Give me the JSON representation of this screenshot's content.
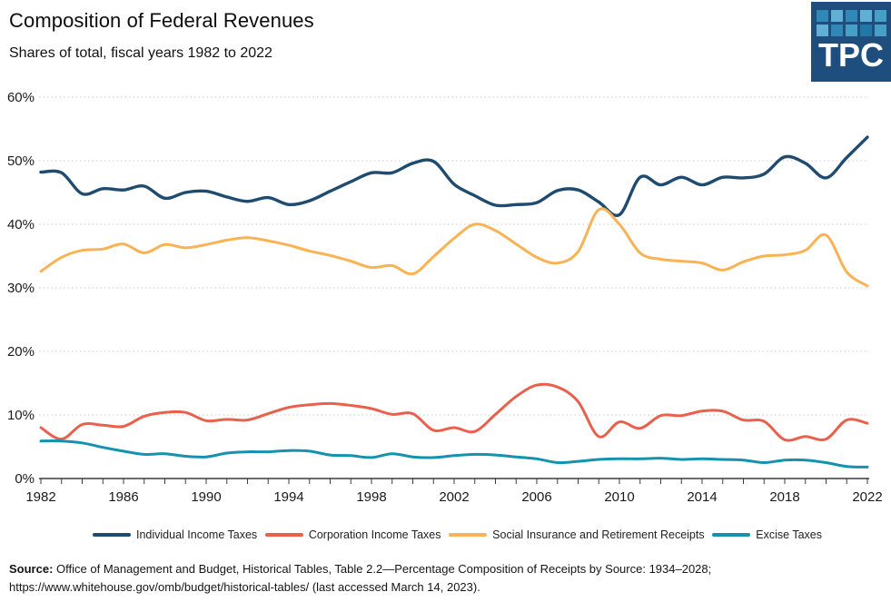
{
  "header": {
    "title": "Composition of Federal Revenues",
    "subtitle": "Shares of total, fiscal years 1982 to 2022"
  },
  "logo": {
    "text": "TPC",
    "background": "#1d4e7e",
    "tiles": [
      "#2e89b8",
      "#5fb0d4",
      "#2e89b8",
      "#5fb0d4",
      "#45a0c8",
      "#5fb0d4",
      "#2e89b8",
      "#45a0c8",
      "#1f78a8",
      "#45a0c8"
    ]
  },
  "chart_data": {
    "type": "line",
    "title": "Composition of Federal Revenues",
    "subtitle": "Shares of total, fiscal years 1982 to 2022",
    "xlabel": "",
    "ylabel": "",
    "ylim": [
      0,
      60
    ],
    "ytick_interval": 10,
    "ytick_suffix": "%",
    "grid": "horizontal-dotted",
    "legend_position": "bottom",
    "years": [
      1982,
      1983,
      1984,
      1985,
      1986,
      1987,
      1988,
      1989,
      1990,
      1991,
      1992,
      1993,
      1994,
      1995,
      1996,
      1997,
      1998,
      1999,
      2000,
      2001,
      2002,
      2003,
      2004,
      2005,
      2006,
      2007,
      2008,
      2009,
      2010,
      2011,
      2012,
      2013,
      2014,
      2015,
      2016,
      2017,
      2018,
      2019,
      2020,
      2021,
      2022
    ],
    "xticks": [
      1982,
      1986,
      1990,
      1994,
      1998,
      2002,
      2006,
      2010,
      2014,
      2018,
      2022
    ],
    "series": [
      {
        "name": "Individual Income Taxes",
        "color": "#1f4b70",
        "stroke_width": 3.4,
        "values": [
          48.2,
          48.1,
          44.8,
          45.6,
          45.4,
          46.0,
          44.1,
          45.0,
          45.2,
          44.3,
          43.6,
          44.2,
          43.1,
          43.7,
          45.2,
          46.7,
          48.1,
          48.1,
          49.6,
          49.9,
          46.3,
          44.5,
          43.0,
          43.1,
          43.4,
          45.3,
          45.4,
          43.5,
          41.5,
          47.4,
          46.2,
          47.4,
          46.2,
          47.4,
          47.3,
          47.9,
          50.6,
          49.6,
          47.3,
          50.5,
          53.7
        ]
      },
      {
        "name": "Corporation Income Taxes",
        "color": "#e9604c",
        "stroke_width": 3,
        "values": [
          8.0,
          6.2,
          8.5,
          8.4,
          8.2,
          9.8,
          10.4,
          10.4,
          9.1,
          9.3,
          9.2,
          10.2,
          11.2,
          11.6,
          11.8,
          11.5,
          11.0,
          10.1,
          10.2,
          7.6,
          8.0,
          7.4,
          10.1,
          12.9,
          14.7,
          14.4,
          12.1,
          6.6,
          8.9,
          7.9,
          9.9,
          9.9,
          10.6,
          10.6,
          9.2,
          9.0,
          6.1,
          6.6,
          6.2,
          9.2,
          8.7
        ]
      },
      {
        "name": "Social Insurance and Retirement Receipts",
        "color": "#f9b254",
        "stroke_width": 3,
        "values": [
          32.6,
          34.8,
          35.9,
          36.1,
          36.9,
          35.5,
          36.8,
          36.3,
          36.8,
          37.5,
          37.9,
          37.4,
          36.7,
          35.8,
          35.1,
          34.2,
          33.2,
          33.5,
          32.2,
          34.9,
          37.8,
          40.0,
          39.0,
          36.9,
          34.8,
          33.9,
          35.7,
          42.3,
          40.0,
          35.5,
          34.5,
          34.2,
          33.9,
          32.8,
          34.1,
          35.0,
          35.2,
          35.9,
          38.3,
          32.5,
          30.3
        ]
      },
      {
        "name": "Excise Taxes",
        "color": "#1593ae",
        "stroke_width": 3,
        "values": [
          5.9,
          5.9,
          5.6,
          4.9,
          4.3,
          3.8,
          3.9,
          3.5,
          3.4,
          4.0,
          4.2,
          4.2,
          4.4,
          4.3,
          3.7,
          3.6,
          3.3,
          3.9,
          3.4,
          3.3,
          3.6,
          3.8,
          3.7,
          3.4,
          3.1,
          2.5,
          2.7,
          3.0,
          3.1,
          3.1,
          3.2,
          3.0,
          3.1,
          3.0,
          2.9,
          2.5,
          2.9,
          2.9,
          2.5,
          1.9,
          1.8
        ]
      }
    ]
  },
  "source": {
    "label": "Source:",
    "line1": "Office of Management and Budget, Historical Tables, Table 2.2—Percentage Composition of Receipts by Source: 1934–2028;",
    "line2": "https://www.whitehouse.gov/omb/budget/historical-tables/ (last accessed March 14, 2023)."
  }
}
